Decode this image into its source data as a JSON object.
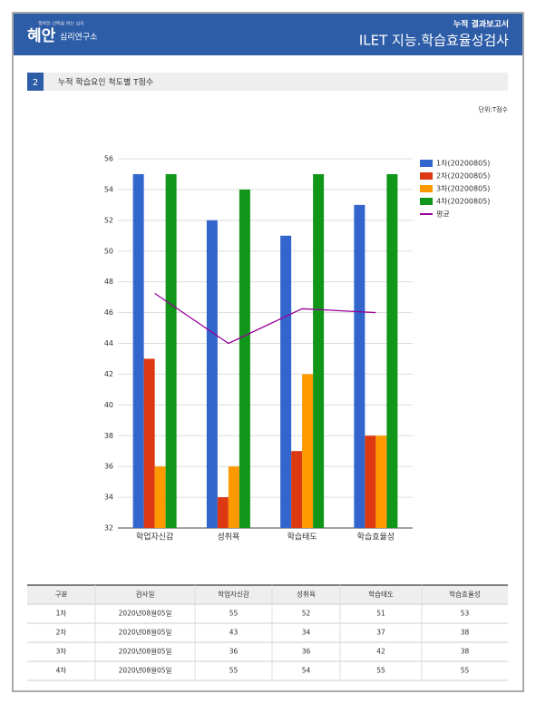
{
  "header": {
    "logo_tagline": "행복한 선택을 여는 심리",
    "logo_name": "혜안",
    "logo_sub": "심리연구소",
    "report": "누적 결과보고서",
    "test": "ILET 지능.학습효율성검사"
  },
  "section": {
    "number": "2",
    "title": "누적 학습요인 척도별 T점수"
  },
  "unit": "단위:T점수",
  "chart_data": {
    "type": "bar",
    "categories": [
      "학업자신감",
      "성취욕",
      "학습태도",
      "학습효율성"
    ],
    "series": [
      {
        "name": "1차(20200805)",
        "color": "#3366cc",
        "values": [
          55,
          52,
          51,
          53
        ]
      },
      {
        "name": "2차(20200805)",
        "color": "#dc3912",
        "values": [
          43,
          34,
          37,
          38
        ]
      },
      {
        "name": "3차(20200805)",
        "color": "#ff9900",
        "values": [
          36,
          36,
          42,
          38
        ]
      },
      {
        "name": "4차(20200805)",
        "color": "#109618",
        "values": [
          55,
          54,
          55,
          55
        ]
      },
      {
        "name": "평균",
        "color": "#990099",
        "type": "line",
        "values": [
          47.25,
          44,
          46.25,
          46
        ]
      }
    ],
    "ylim": [
      32,
      56
    ],
    "yticks": [
      32,
      34,
      36,
      38,
      40,
      42,
      44,
      46,
      48,
      50,
      52,
      54,
      56
    ],
    "grid": true,
    "legend": "right"
  },
  "table": {
    "header": [
      "구분",
      "검사일",
      "학업자신감",
      "성취욕",
      "학습태도",
      "학습효율성"
    ],
    "rows": [
      [
        "1차",
        "2020년08월05일",
        55,
        52,
        51,
        53
      ],
      [
        "2차",
        "2020년08월05일",
        43,
        34,
        37,
        38
      ],
      [
        "3차",
        "2020년08월05일",
        36,
        36,
        42,
        38
      ],
      [
        "4차",
        "2020년08월05일",
        55,
        54,
        55,
        55
      ]
    ]
  }
}
